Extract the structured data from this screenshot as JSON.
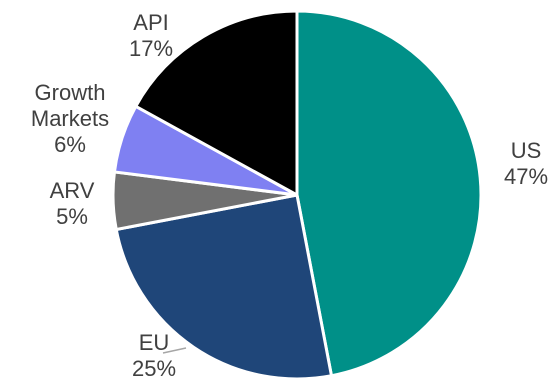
{
  "chart_data": {
    "type": "pie",
    "title": "",
    "start_angle_deg": 0,
    "direction": "clockwise",
    "slices": [
      {
        "label": "US",
        "value": 47,
        "pct_label": "47%",
        "color": "#009088"
      },
      {
        "label": "EU",
        "value": 25,
        "pct_label": "25%",
        "color": "#1f4679"
      },
      {
        "label": "ARV",
        "value": 5,
        "pct_label": "5%",
        "color": "#707070"
      },
      {
        "label": "Growth\nMarkets",
        "value": 6,
        "pct_label": "6%",
        "color": "#7f80f2"
      },
      {
        "label": "API",
        "value": 17,
        "pct_label": "17%",
        "color": "#000000"
      }
    ],
    "edge_color": "#ffffff",
    "label_color": "#404040",
    "leader_line_color": "#a6a6a6",
    "legend": "none"
  }
}
